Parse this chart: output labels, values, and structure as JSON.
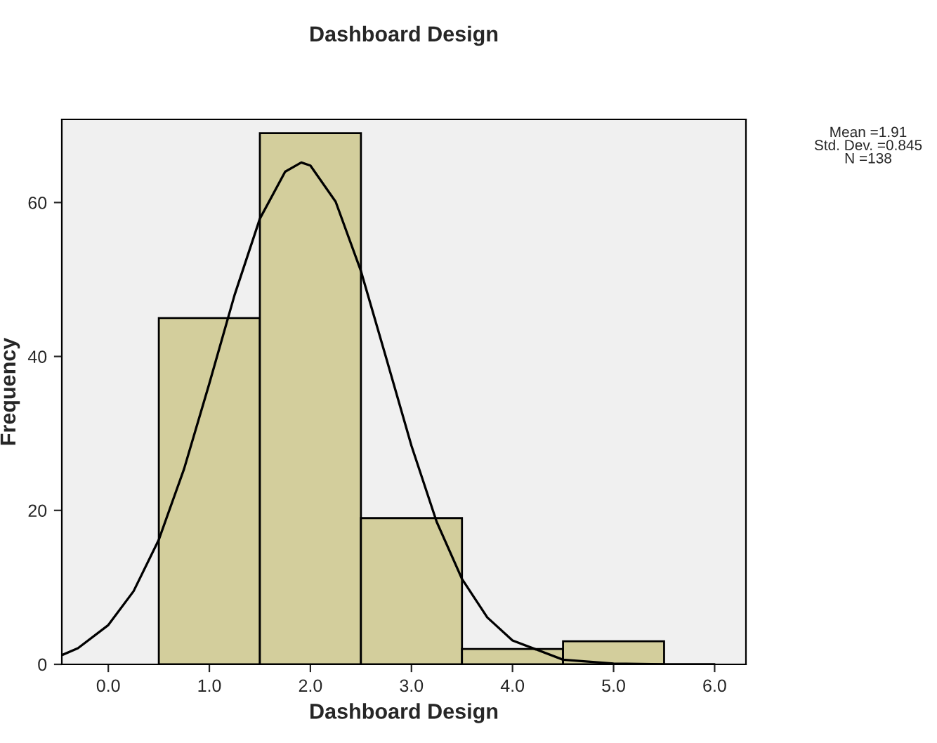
{
  "chart_data": {
    "type": "histogram",
    "title": "Dashboard Design",
    "xlabel": "Dashboard Design",
    "ylabel": "Frequency",
    "bins": [
      0.5,
      1.5,
      2.5,
      3.5,
      4.5,
      5.5
    ],
    "values": [
      45,
      69,
      19,
      2,
      3
    ],
    "color": "#d3ce9c",
    "series": [
      {
        "type": "line",
        "color": "#000000",
        "x": [
          -0.46,
          -0.3,
          0.0,
          0.25,
          0.5,
          0.75,
          1.0,
          1.25,
          1.5,
          1.75,
          1.91,
          2.0,
          2.25,
          2.5,
          2.75,
          3.0,
          3.25,
          3.5,
          3.75,
          4.0,
          4.5,
          5.0,
          5.5,
          6.0
        ],
        "values": [
          1.2,
          2.1,
          5.1,
          9.5,
          16.2,
          25.4,
          36.5,
          48.0,
          57.9,
          64.0,
          65.2,
          64.8,
          60.1,
          51.1,
          39.8,
          28.4,
          18.5,
          11.1,
          6.1,
          3.1,
          0.6,
          0.1,
          0,
          0
        ]
      }
    ],
    "xlim": [
      -0.46,
      6.31
    ],
    "ylim": [
      0,
      70.8
    ],
    "xticks": [
      {
        "value": 0,
        "label": "0.0"
      },
      {
        "value": 1,
        "label": "1.0"
      },
      {
        "value": 2,
        "label": "2.0"
      },
      {
        "value": 3,
        "label": "3.0"
      },
      {
        "value": 4,
        "label": "4.0"
      },
      {
        "value": 5,
        "label": "5.0"
      },
      {
        "value": 6,
        "label": "6.0"
      }
    ],
    "yticks": [
      0,
      20,
      40,
      60
    ],
    "annotations": [
      "Mean =1.91\nStd. Dev. =0.845\nN =138"
    ],
    "grid": false,
    "legend": false
  }
}
